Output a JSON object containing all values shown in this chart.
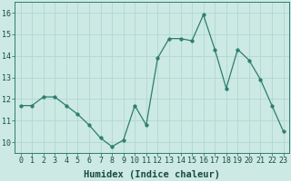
{
  "x": [
    0,
    1,
    2,
    3,
    4,
    5,
    6,
    7,
    8,
    9,
    10,
    11,
    12,
    13,
    14,
    15,
    16,
    17,
    18,
    19,
    20,
    21,
    22,
    23
  ],
  "y": [
    11.7,
    11.7,
    12.1,
    12.1,
    11.7,
    11.3,
    10.8,
    10.2,
    9.8,
    10.1,
    11.7,
    10.8,
    13.9,
    14.8,
    14.8,
    14.7,
    15.9,
    14.3,
    12.5,
    14.3,
    13.8,
    12.9,
    11.7,
    10.5
  ],
  "line_color": "#2d7d6e",
  "marker": "o",
  "marker_size": 2.5,
  "bg_color": "#cce9e4",
  "grid_color": "#b0d8d2",
  "xlabel": "Humidex (Indice chaleur)",
  "xlim": [
    -0.5,
    23.5
  ],
  "ylim": [
    9.5,
    16.5
  ],
  "yticks": [
    10,
    11,
    12,
    13,
    14,
    15,
    16
  ],
  "xticks": [
    0,
    1,
    2,
    3,
    4,
    5,
    6,
    7,
    8,
    9,
    10,
    11,
    12,
    13,
    14,
    15,
    16,
    17,
    18,
    19,
    20,
    21,
    22,
    23
  ],
  "tick_fontsize": 6,
  "xlabel_fontsize": 7.5,
  "spine_color": "#2d7d6e"
}
